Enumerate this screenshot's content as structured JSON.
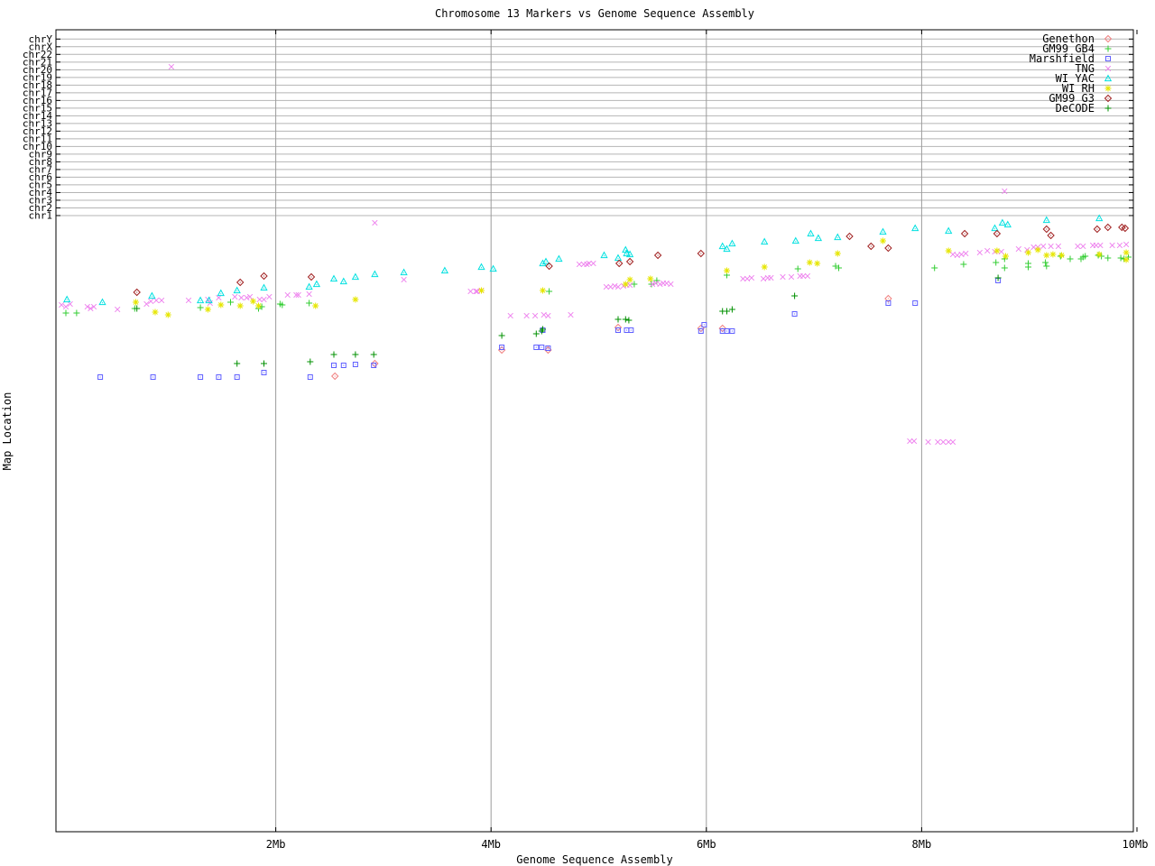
{
  "chart_data": {
    "type": "scatter",
    "title": "Chromosome 13 Markers vs Genome Sequence Assembly",
    "xlabel": "Genome Sequence Assembly",
    "ylabel": "Map Location",
    "grid": true,
    "legend_position": "top-right-inside",
    "x_axis": {
      "units": "Mb",
      "range_mb": [
        0,
        10
      ],
      "ticks": [
        {
          "label": "2Mb",
          "mb": 2
        },
        {
          "label": "4Mb",
          "mb": 4
        },
        {
          "label": "6Mb",
          "mb": 6
        },
        {
          "label": "8Mb",
          "mb": 8
        },
        {
          "label": "10Mb",
          "mb": 10
        }
      ]
    },
    "y_axis": {
      "categories": [
        "chrY",
        "chrX",
        "chr22",
        "chr21",
        "chr20",
        "chr19",
        "chr18",
        "chr17",
        "chr16",
        "chr15",
        "chr14",
        "chr13",
        "chr12",
        "chr11",
        "chr10",
        "chr9",
        "chr8",
        "chr7",
        "chr6",
        "chr5",
        "chr4",
        "chr3",
        "chr2",
        "chr1"
      ],
      "note": "Map location axis: chromosome bands ticked at top, unlabeled map-distance region below chr1 where chr13 marker positions are plotted. Point y given as plot pixel from image top."
    },
    "series": [
      {
        "name": "Genethon",
        "color": "#f08080",
        "symbol": "diamond",
        "points": [
          [
            2.55,
            417
          ],
          [
            2.92,
            403
          ],
          [
            4.1,
            388
          ],
          [
            4.53,
            388
          ],
          [
            5.18,
            363
          ],
          [
            5.95,
            364
          ],
          [
            6.15,
            364
          ],
          [
            7.69,
            331
          ]
        ]
      },
      {
        "name": "GM99 GB4",
        "color": "#32cd32",
        "symbol": "plus",
        "points": [
          [
            0.05,
            347
          ],
          [
            0.15,
            347
          ],
          [
            0.69,
            342
          ],
          [
            1.3,
            341
          ],
          [
            1.58,
            335
          ],
          [
            1.84,
            342
          ],
          [
            1.87,
            340
          ],
          [
            2.04,
            337
          ],
          [
            2.06,
            338
          ],
          [
            2.31,
            336
          ],
          [
            4.54,
            323
          ],
          [
            5.33,
            315
          ],
          [
            5.49,
            315
          ],
          [
            5.54,
            311
          ],
          [
            6.19,
            305
          ],
          [
            6.85,
            298
          ],
          [
            7.2,
            295
          ],
          [
            7.23,
            297
          ],
          [
            8.12,
            297
          ],
          [
            8.39,
            293
          ],
          [
            8.69,
            291
          ],
          [
            8.77,
            287
          ],
          [
            8.77,
            297
          ],
          [
            8.99,
            292
          ],
          [
            8.99,
            296
          ],
          [
            9.15,
            291
          ],
          [
            9.16,
            295
          ],
          [
            9.29,
            284
          ],
          [
            9.38,
            287
          ],
          [
            9.48,
            287
          ],
          [
            9.5,
            285
          ],
          [
            9.52,
            284
          ],
          [
            9.64,
            283
          ],
          [
            9.67,
            284
          ],
          [
            9.73,
            286
          ],
          [
            9.85,
            286
          ],
          [
            9.88,
            287
          ],
          [
            9.92,
            285
          ]
        ]
      },
      {
        "name": "Marshfield",
        "color": "#5f5fff",
        "symbol": "square",
        "points": [
          [
            0.37,
            418
          ],
          [
            0.86,
            418
          ],
          [
            1.3,
            418
          ],
          [
            1.47,
            418
          ],
          [
            1.64,
            418
          ],
          [
            1.89,
            413
          ],
          [
            2.32,
            418
          ],
          [
            2.54,
            405
          ],
          [
            2.63,
            405
          ],
          [
            2.74,
            404
          ],
          [
            2.91,
            405
          ],
          [
            4.1,
            385
          ],
          [
            4.42,
            385
          ],
          [
            4.47,
            385
          ],
          [
            4.48,
            366
          ],
          [
            4.53,
            386
          ],
          [
            5.18,
            366
          ],
          [
            5.26,
            366
          ],
          [
            5.3,
            366
          ],
          [
            5.95,
            367
          ],
          [
            5.98,
            360
          ],
          [
            6.15,
            367
          ],
          [
            6.19,
            367
          ],
          [
            6.24,
            367
          ],
          [
            6.82,
            348
          ],
          [
            7.69,
            336
          ],
          [
            7.94,
            336
          ],
          [
            8.71,
            311
          ]
        ]
      },
      {
        "name": "TNG",
        "color": "#ee82ee",
        "symbol": "cross",
        "points": [
          [
            1.03,
            74
          ],
          [
            8.77,
            212
          ],
          [
            2.92,
            247
          ],
          [
            0.01,
            338
          ],
          [
            0.05,
            340
          ],
          [
            0.09,
            337
          ],
          [
            0.25,
            340
          ],
          [
            0.28,
            342
          ],
          [
            0.31,
            340
          ],
          [
            0.53,
            343
          ],
          [
            0.8,
            337
          ],
          [
            0.84,
            334
          ],
          [
            0.89,
            333
          ],
          [
            0.94,
            333
          ],
          [
            1.19,
            333
          ],
          [
            1.37,
            332
          ],
          [
            1.39,
            336
          ],
          [
            1.47,
            330
          ],
          [
            1.62,
            329
          ],
          [
            1.68,
            330
          ],
          [
            1.73,
            330
          ],
          [
            1.76,
            329
          ],
          [
            1.85,
            332
          ],
          [
            1.89,
            332
          ],
          [
            1.94,
            329
          ],
          [
            2.11,
            327
          ],
          [
            2.19,
            327
          ],
          [
            2.21,
            327
          ],
          [
            2.31,
            326
          ],
          [
            3.19,
            310
          ],
          [
            3.81,
            323
          ],
          [
            3.86,
            323
          ],
          [
            3.87,
            323
          ],
          [
            3.91,
            322
          ],
          [
            4.18,
            350
          ],
          [
            4.33,
            350
          ],
          [
            4.41,
            350
          ],
          [
            4.49,
            349
          ],
          [
            4.53,
            350
          ],
          [
            4.74,
            349
          ],
          [
            4.82,
            293
          ],
          [
            4.86,
            293
          ],
          [
            4.89,
            293
          ],
          [
            4.91,
            292
          ],
          [
            4.95,
            292
          ],
          [
            5.07,
            318
          ],
          [
            5.11,
            318
          ],
          [
            5.15,
            317
          ],
          [
            5.18,
            318
          ],
          [
            5.23,
            317
          ],
          [
            5.26,
            316
          ],
          [
            5.29,
            316
          ],
          [
            5.5,
            315
          ],
          [
            5.53,
            314
          ],
          [
            5.57,
            315
          ],
          [
            5.6,
            314
          ],
          [
            5.63,
            314
          ],
          [
            5.67,
            315
          ],
          [
            6.34,
            309
          ],
          [
            6.38,
            309
          ],
          [
            6.42,
            308
          ],
          [
            6.53,
            309
          ],
          [
            6.57,
            308
          ],
          [
            6.6,
            308
          ],
          [
            6.71,
            307
          ],
          [
            6.79,
            307
          ],
          [
            6.87,
            306
          ],
          [
            6.9,
            306
          ],
          [
            6.94,
            306
          ],
          [
            7.89,
            489
          ],
          [
            7.93,
            489
          ],
          [
            8.06,
            490
          ],
          [
            8.15,
            490
          ],
          [
            8.2,
            490
          ],
          [
            8.25,
            490
          ],
          [
            8.29,
            490
          ],
          [
            8.29,
            282
          ],
          [
            8.33,
            283
          ],
          [
            8.37,
            282
          ],
          [
            8.41,
            281
          ],
          [
            8.54,
            280
          ],
          [
            8.61,
            278
          ],
          [
            8.68,
            279
          ],
          [
            8.74,
            279
          ],
          [
            8.9,
            276
          ],
          [
            8.98,
            277
          ],
          [
            9.04,
            274
          ],
          [
            9.08,
            274
          ],
          [
            9.13,
            273
          ],
          [
            9.2,
            273
          ],
          [
            9.27,
            273
          ],
          [
            9.45,
            273
          ],
          [
            9.5,
            273
          ],
          [
            9.59,
            272
          ],
          [
            9.62,
            272
          ],
          [
            9.66,
            272
          ],
          [
            9.77,
            272
          ],
          [
            9.84,
            272
          ],
          [
            9.9,
            271
          ]
        ]
      },
      {
        "name": "WI YAC",
        "color": "#00e0e0",
        "symbol": "triangle",
        "points": [
          [
            0.06,
            332
          ],
          [
            0.39,
            335
          ],
          [
            0.85,
            328
          ],
          [
            1.3,
            333
          ],
          [
            1.38,
            333
          ],
          [
            1.49,
            325
          ],
          [
            1.64,
            322
          ],
          [
            1.89,
            319
          ],
          [
            2.31,
            318
          ],
          [
            2.38,
            315
          ],
          [
            2.54,
            309
          ],
          [
            2.63,
            312
          ],
          [
            2.74,
            307
          ],
          [
            2.92,
            304
          ],
          [
            3.19,
            302
          ],
          [
            3.57,
            300
          ],
          [
            3.91,
            296
          ],
          [
            4.02,
            298
          ],
          [
            4.48,
            292
          ],
          [
            4.51,
            290
          ],
          [
            4.63,
            287
          ],
          [
            5.05,
            283
          ],
          [
            5.18,
            286
          ],
          [
            5.25,
            277
          ],
          [
            5.26,
            281
          ],
          [
            5.29,
            282
          ],
          [
            6.15,
            273
          ],
          [
            6.19,
            276
          ],
          [
            6.24,
            270
          ],
          [
            6.54,
            268
          ],
          [
            6.83,
            267
          ],
          [
            6.97,
            259
          ],
          [
            7.04,
            264
          ],
          [
            7.22,
            263
          ],
          [
            7.64,
            257
          ],
          [
            7.94,
            253
          ],
          [
            8.25,
            256
          ],
          [
            8.68,
            253
          ],
          [
            8.75,
            247
          ],
          [
            8.8,
            249
          ],
          [
            9.16,
            244
          ],
          [
            9.65,
            242
          ]
        ]
      },
      {
        "name": "WI RH",
        "color": "#e6e600",
        "symbol": "star",
        "points": [
          [
            0.7,
            335
          ],
          [
            0.88,
            346
          ],
          [
            1.0,
            349
          ],
          [
            1.37,
            343
          ],
          [
            1.49,
            338
          ],
          [
            1.67,
            339
          ],
          [
            1.79,
            334
          ],
          [
            1.84,
            339
          ],
          [
            2.37,
            339
          ],
          [
            2.74,
            332
          ],
          [
            3.91,
            322
          ],
          [
            4.48,
            322
          ],
          [
            5.25,
            315
          ],
          [
            5.29,
            310
          ],
          [
            5.48,
            309
          ],
          [
            6.19,
            300
          ],
          [
            6.54,
            296
          ],
          [
            6.96,
            291
          ],
          [
            7.03,
            292
          ],
          [
            7.22,
            281
          ],
          [
            7.64,
            267
          ],
          [
            8.25,
            278
          ],
          [
            8.7,
            278
          ],
          [
            8.78,
            284
          ],
          [
            8.99,
            280
          ],
          [
            9.08,
            277
          ],
          [
            9.16,
            283
          ],
          [
            9.22,
            282
          ],
          [
            9.3,
            283
          ],
          [
            9.65,
            282
          ],
          [
            9.9,
            280
          ],
          [
            9.9,
            288
          ]
        ]
      },
      {
        "name": "GM99 G3",
        "color": "#a02020",
        "symbol": "diamond",
        "points": [
          [
            0.71,
            324
          ],
          [
            1.67,
            313
          ],
          [
            1.89,
            306
          ],
          [
            2.33,
            307
          ],
          [
            4.54,
            295
          ],
          [
            5.19,
            292
          ],
          [
            5.29,
            290
          ],
          [
            5.55,
            283
          ],
          [
            5.95,
            281
          ],
          [
            7.33,
            262
          ],
          [
            7.53,
            273
          ],
          [
            7.69,
            275
          ],
          [
            8.4,
            259
          ],
          [
            8.7,
            259
          ],
          [
            9.16,
            254
          ],
          [
            9.2,
            261
          ],
          [
            9.63,
            254
          ],
          [
            9.73,
            252
          ],
          [
            9.86,
            252
          ],
          [
            9.89,
            253
          ]
        ]
      },
      {
        "name": "DeCODE",
        "color": "#009000",
        "symbol": "plus",
        "points": [
          [
            0.71,
            342
          ],
          [
            1.64,
            403
          ],
          [
            1.89,
            403
          ],
          [
            2.32,
            401
          ],
          [
            2.54,
            393
          ],
          [
            2.74,
            393
          ],
          [
            2.91,
            393
          ],
          [
            4.1,
            372
          ],
          [
            4.42,
            370
          ],
          [
            4.47,
            367
          ],
          [
            4.48,
            365
          ],
          [
            5.18,
            354
          ],
          [
            5.25,
            354
          ],
          [
            5.28,
            355
          ],
          [
            6.15,
            345
          ],
          [
            6.19,
            345
          ],
          [
            6.24,
            343
          ],
          [
            6.82,
            328
          ],
          [
            8.71,
            308
          ]
        ]
      }
    ]
  }
}
